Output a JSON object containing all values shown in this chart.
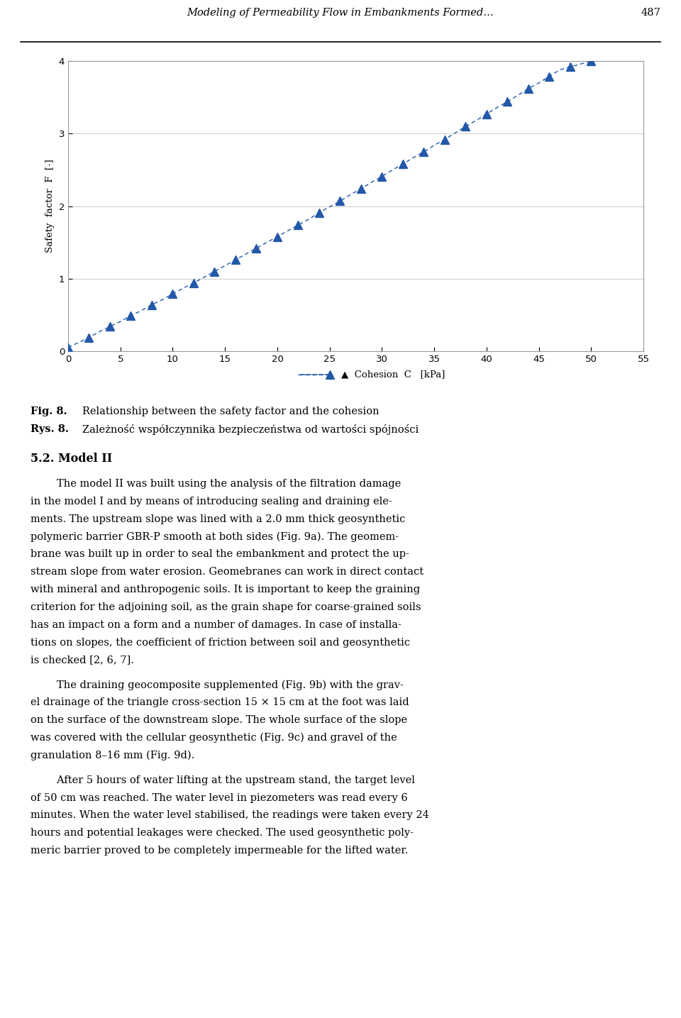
{
  "header_title": "Modeling of Permeability Flow in Embankments Formed…",
  "header_page": "487",
  "x_data": [
    0,
    1,
    2,
    3,
    4,
    5,
    6,
    7,
    8,
    9,
    10,
    11,
    12,
    13,
    14,
    15,
    16,
    17,
    18,
    19,
    20,
    21,
    22,
    23,
    24,
    25,
    26,
    27,
    28,
    29,
    30,
    31,
    32,
    33,
    34,
    35,
    36,
    37,
    38,
    39,
    40,
    41,
    42,
    43,
    44,
    45,
    46,
    47,
    48,
    49,
    50
  ],
  "y_data": [
    0.05,
    0.12,
    0.19,
    0.27,
    0.34,
    0.41,
    0.49,
    0.56,
    0.64,
    0.71,
    0.79,
    0.87,
    0.94,
    1.02,
    1.1,
    1.18,
    1.26,
    1.34,
    1.42,
    1.5,
    1.58,
    1.66,
    1.74,
    1.82,
    1.91,
    1.99,
    2.07,
    2.16,
    2.24,
    2.33,
    2.41,
    2.5,
    2.58,
    2.67,
    2.75,
    2.84,
    2.92,
    3.01,
    3.1,
    3.18,
    3.27,
    3.36,
    3.44,
    3.53,
    3.62,
    3.7,
    3.79,
    3.88,
    3.92,
    3.96,
    4.0
  ],
  "plot_x_points": [
    0,
    2,
    4,
    6,
    8,
    10,
    12,
    14,
    16,
    18,
    20,
    22,
    24,
    26,
    28,
    30,
    32,
    34,
    36,
    38,
    40,
    42,
    44,
    46,
    48,
    50
  ],
  "ylabel": "Safety  factor  F  [-]",
  "xlim": [
    0,
    55
  ],
  "ylim": [
    0,
    4
  ],
  "xticks": [
    0,
    5,
    10,
    15,
    20,
    25,
    30,
    35,
    40,
    45,
    50,
    55
  ],
  "yticks": [
    0,
    1,
    2,
    3,
    4
  ],
  "legend_label": "Cohesion  C   [kPa]",
  "line_color": "#2358a8",
  "marker_color": "#2358a8",
  "fig_caption_bold": "Fig. 8.",
  "fig_caption_rest": " Relationship between the safety factor and the cohesion",
  "fig_caption2_bold": "Rys. 8.",
  "fig_caption2_rest": " Zależność współczynnika bezpieczeństwa od wartości spójności",
  "section_heading": "5.2. Model II",
  "para1_indent": "        The model II was built using the analysis of the filtration damage in the model I and by means of introducing sealing and draining ele-\nments. The upstream slope was lined with a 2.0 mm thick geosynthetic polymeric barrier GBR-P smooth at both sides (Fig. 9a). The geomem-\nbrane was built up in order to seal the embankment and protect the up-\nstream slope from water erosion. Geomebranes can work in direct contact with mineral and anthropogenic soils. It is important to keep the graining criterion for the adjoining soil, as the grain shape for coarse-grained soils has an impact on a form and a number of damages. In case of installa-\ntions on slopes, the coefficient of friction between soil and geosynthetic is checked [2, 6, 7].",
  "para2_indent": "        The draining geocomposite supplemented (Fig. 9b) with the grav-\nel drainage of the triangle cross-section 15 × 15 cm at the foot was laid on the surface of the downstream slope. The whole surface of the slope was covered with the cellular geosynthetic (Fig. 9c) and gravel of the granulation 8–16 mm (Fig. 9d).",
  "para3_indent": "        After 5 hours of water lifting at the upstream stand, the target level of 50 cm was reached. The water level in piezometers was read every 6 minutes. When the water level stabilised, the readings were taken every 24 hours and potential leakages were checked. The used geosynthetic poly-\nmeric barrier proved to be completely impermeable for the lifted water."
}
